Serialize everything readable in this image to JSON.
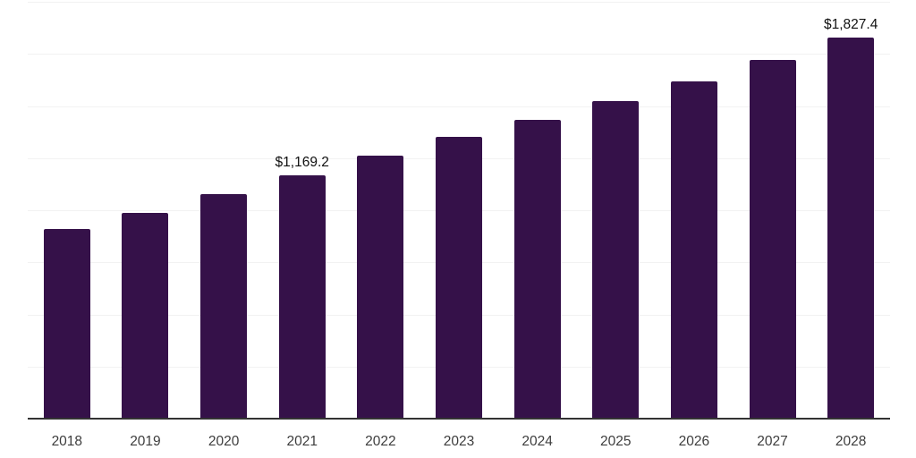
{
  "chart_data": {
    "type": "bar",
    "title": "",
    "xlabel": "",
    "ylabel": "",
    "categories": [
      "2018",
      "2019",
      "2020",
      "2021",
      "2022",
      "2023",
      "2024",
      "2025",
      "2026",
      "2027",
      "2028"
    ],
    "values": [
      912,
      988,
      1078,
      1169.2,
      1260,
      1351,
      1435,
      1524,
      1618,
      1722,
      1827.4
    ],
    "value_labels": [
      "",
      "",
      "",
      "$1,169.2",
      "",
      "",
      "",
      "",
      "",
      "",
      "$1,827.4"
    ],
    "ylim": [
      0,
      2000
    ],
    "grid_step": 250,
    "grid": "horizontal gridlines, no y-axis tick labels",
    "legend": "none",
    "colors": {
      "bar": "#351149",
      "axis_line": "#333333",
      "gridline": "#f2f2f2",
      "tick_label": "#3d3d3d",
      "value_label": "#111111",
      "background": "#ffffff"
    }
  }
}
